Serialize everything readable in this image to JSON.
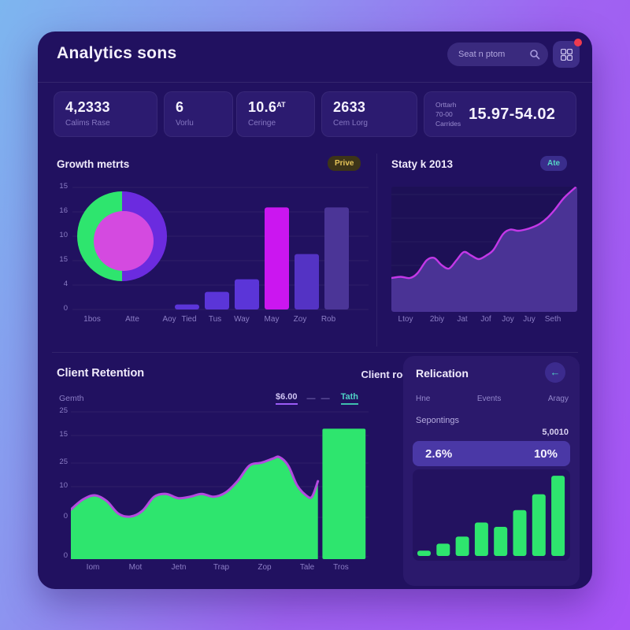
{
  "header": {
    "title": "Analytics sons",
    "search_placeholder": "Seat n ptom"
  },
  "stats": [
    {
      "value": "4,2333",
      "label": "Calims Rase"
    },
    {
      "value": "6",
      "label": "Vorlu"
    },
    {
      "value": "10.6",
      "suffix": "AT",
      "label": "Ceringe"
    },
    {
      "value": "2633",
      "label": "Cem Lorg"
    },
    {
      "meta1": "Orttarh",
      "meta2": "70-00",
      "meta3": "Carrides",
      "value": "15.97-54.02"
    }
  ],
  "panels": {
    "growth": {
      "title": "Growth metrts",
      "badge": "Prive"
    },
    "staty": {
      "title": "Staty k 2013",
      "badge": "Ate"
    },
    "retention": {
      "title": "Client Retention",
      "title_right": "Client roents",
      "legend_label": "Gemth",
      "legend_value": "$6.00",
      "legend_dashes": "— —",
      "legend_series": "Tath"
    },
    "relication": {
      "title": "Relication",
      "back_icon": "←",
      "tabs": [
        "Hne",
        "Events",
        "Aragy"
      ],
      "row_label": "Sepontings",
      "row_value": "5,0010",
      "pct_left": "2.6%",
      "pct_right": "10%"
    }
  },
  "colors": {
    "accent_green": "#2EE56E",
    "accent_magenta": "#CB16F0",
    "accent_violet": "#6B2BDF",
    "pie_center": "#D44AE0",
    "line_magenta": "#C438E8",
    "area_fill_purple": "#4A3395",
    "badge_gold": "#E6C459",
    "badge_teal": "#56D4C6",
    "card_bg": "#211160",
    "panel_bg": "#2B196C",
    "highlight_row": "#4A38A6",
    "notification_red": "#EF3B4F"
  },
  "chart_data": [
    {
      "name": "growth-metrics",
      "type": "donut+bar",
      "grid": true,
      "y_tick_labels": [
        "15",
        "16",
        "10",
        "15",
        "4",
        "0"
      ],
      "x_tick_labels": [
        "1bos",
        "Atte",
        "Aoy",
        "Tied",
        "Tus",
        "Way",
        "May",
        "Zoy",
        "Rob"
      ],
      "donut": {
        "segments": [
          {
            "label": "left-half",
            "pct": 50,
            "color": "#2EE56E"
          },
          {
            "label": "right-half",
            "pct": 50,
            "color": "#6B2BDF"
          }
        ],
        "center_color": "#D44AE0"
      },
      "bars": {
        "categories": [
          "Tied",
          "Tus",
          "Way",
          "May",
          "Zoy",
          "Rob"
        ],
        "values_pct": [
          4,
          14,
          24,
          81,
          44,
          81
        ],
        "colors": [
          "#5B35D8",
          "#5B35D8",
          "#5B35D8",
          "#CB16F0",
          "#5433C4",
          "#4B3597"
        ]
      }
    },
    {
      "name": "staty-k-2013",
      "type": "area",
      "grid": true,
      "x_tick_labels": [
        "Ltoy",
        "2biy",
        "Jat",
        "Jof",
        "Joy",
        "Juy",
        "Seth"
      ],
      "line_color": "#C438E8",
      "fill_color": "#4A3395",
      "points_pct": [
        [
          0,
          26
        ],
        [
          5,
          27
        ],
        [
          10,
          26
        ],
        [
          14,
          30
        ],
        [
          19,
          41
        ],
        [
          23,
          43
        ],
        [
          27,
          37
        ],
        [
          31,
          34
        ],
        [
          35,
          41
        ],
        [
          39,
          48
        ],
        [
          43,
          45
        ],
        [
          47,
          42
        ],
        [
          51,
          45
        ],
        [
          55,
          50
        ],
        [
          60,
          63
        ],
        [
          64,
          67
        ],
        [
          68,
          66
        ],
        [
          72,
          67
        ],
        [
          76,
          69
        ],
        [
          80,
          72
        ],
        [
          84,
          77
        ],
        [
          88,
          84
        ],
        [
          93,
          94
        ],
        [
          100,
          104
        ]
      ]
    },
    {
      "name": "client-retention",
      "type": "area+bar",
      "grid": true,
      "y_tick_labels": [
        "25",
        "15",
        "25",
        "10",
        "0",
        "0"
      ],
      "x_tick_labels": [
        "Iom",
        "Mot",
        "Jetn",
        "Trap",
        "Zop",
        "Tale",
        "Tros"
      ],
      "area_color": "#2EE56E",
      "stroke_color": "#B44BE0",
      "points_pct": [
        [
          0,
          35
        ],
        [
          4,
          42
        ],
        [
          8,
          45
        ],
        [
          12,
          41
        ],
        [
          16,
          32
        ],
        [
          20,
          30
        ],
        [
          24,
          34
        ],
        [
          28,
          44
        ],
        [
          32,
          46
        ],
        [
          36,
          43
        ],
        [
          40,
          44
        ],
        [
          44,
          46
        ],
        [
          48,
          44
        ],
        [
          52,
          47
        ],
        [
          56,
          55
        ],
        [
          60,
          66
        ],
        [
          64,
          68
        ],
        [
          68,
          71
        ],
        [
          70,
          72
        ],
        [
          73,
          66
        ],
        [
          76,
          52
        ],
        [
          79,
          45
        ],
        [
          81,
          44
        ],
        [
          83,
          55
        ]
      ],
      "bar": {
        "x0_pct": 84.5,
        "x1_pct": 99,
        "value_pct": 92,
        "color": "#2EE56E"
      }
    },
    {
      "name": "relication-mini",
      "type": "bar",
      "values_pct": [
        6,
        14,
        22,
        38,
        33,
        52,
        70,
        91
      ],
      "color": "#2EE56E"
    }
  ]
}
